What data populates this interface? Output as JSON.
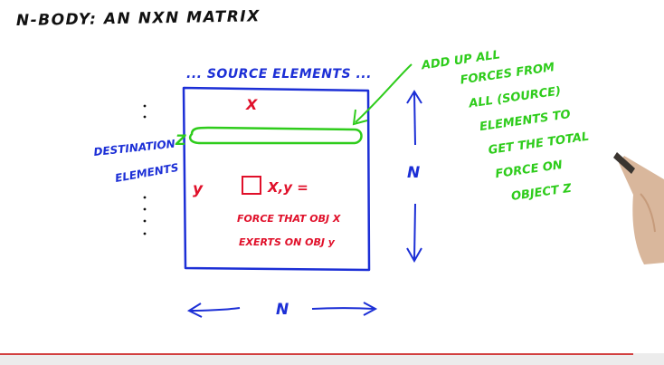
{
  "title": "N-BODY: AN NXN MATRIX",
  "matrix": {
    "top_label": "... SOURCE ELEMENTS ...",
    "column_marker": "X",
    "row_marker": "y",
    "cell_label": "X,y =",
    "cell_desc_line1": "FORCE THAT OBJ X",
    "cell_desc_line2": "EXERTS ON OBJ y"
  },
  "left_labels": {
    "destination": "DESTINATION",
    "z_marker": "Z",
    "elements": "ELEMENTS"
  },
  "n_labels": {
    "right": "N",
    "bottom": "N"
  },
  "annotation": {
    "lines": [
      "ADD UP ALL",
      "FORCES FROM",
      "ALL (SOURCE)",
      "ELEMENTS TO",
      "GET THE TOTAL",
      "FORCE ON",
      "OBJECT Z"
    ]
  },
  "colors": {
    "black": "#111111",
    "blue": "#1c2fd6",
    "green": "#2ecc1b",
    "red": "#e0102a"
  }
}
